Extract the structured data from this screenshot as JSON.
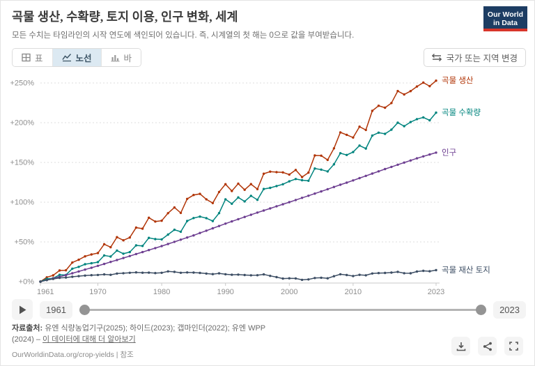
{
  "header": {
    "title": "곡물 생산, 수확량, 토지 이용, 인구 변화, 세계",
    "subtitle": "모든 수치는 타임라인의 시작 연도에 색인되어 있습니다. 즉, 시계열의 첫 해는 0으로 값을 부여받습니다.",
    "logo_line1": "Our World",
    "logo_line2": "in Data"
  },
  "controls": {
    "tab_table": "표",
    "tab_line": "노선",
    "tab_bar": "바",
    "entity_button": "국가 또는 지역 변경"
  },
  "chart_data": {
    "type": "line",
    "title": "곡물 생산, 수확량, 토지 이용, 인구 변화, 세계",
    "xlabel": "",
    "ylabel": "",
    "ylim": [
      0,
      265
    ],
    "grid": "horizontal-dashed",
    "legend_position": "right-end-labels",
    "y_tick_labels": [
      "+0%",
      "+50%",
      "+100%",
      "+150%",
      "+200%",
      "+250%"
    ],
    "y_tick_values": [
      0,
      50,
      100,
      150,
      200,
      250
    ],
    "x_ticks": [
      1961,
      1970,
      1980,
      1990,
      2000,
      2010,
      2023
    ],
    "years": [
      1961,
      1962,
      1963,
      1964,
      1965,
      1966,
      1967,
      1968,
      1969,
      1970,
      1971,
      1972,
      1973,
      1974,
      1975,
      1976,
      1977,
      1978,
      1979,
      1980,
      1981,
      1982,
      1983,
      1984,
      1985,
      1986,
      1987,
      1988,
      1989,
      1990,
      1991,
      1992,
      1993,
      1994,
      1995,
      1996,
      1997,
      1998,
      1999,
      2000,
      2001,
      2002,
      2003,
      2004,
      2005,
      2006,
      2007,
      2008,
      2009,
      2010,
      2011,
      2012,
      2013,
      2014,
      2015,
      2016,
      2017,
      2018,
      2019,
      2020,
      2021,
      2022,
      2023
    ],
    "series": [
      {
        "name": "곡물 생산",
        "color": "#b13507",
        "values": [
          0,
          5.4,
          7.9,
          14,
          14.3,
          24,
          27.5,
          31.8,
          34.2,
          36,
          47.1,
          43.3,
          56,
          52,
          55.5,
          68,
          66.7,
          80.4,
          75.6,
          76.7,
          86.1,
          93.3,
          86.5,
          104.1,
          109,
          110.4,
          103.6,
          98.9,
          112.8,
          122.6,
          114,
          123.3,
          115.6,
          122.7,
          116.4,
          135.8,
          138.4,
          137.8,
          137.5,
          134.7,
          140.5,
          131.6,
          137.2,
          158.8,
          158.5,
          153.2,
          167.7,
          187.8,
          184.7,
          181.3,
          195,
          190.9,
          214.9,
          221.3,
          218.9,
          224.7,
          239.8,
          235.5,
          239.7,
          245.5,
          250.4,
          246,
          252.9
        ]
      },
      {
        "name": "곡물 수확량",
        "color": "#00847e",
        "values": [
          0,
          3.5,
          4.3,
          8.6,
          8.4,
          16.3,
          18.6,
          21.9,
          23.2,
          24.6,
          33,
          31.6,
          39.1,
          35.2,
          37.2,
          45.6,
          44.9,
          55.1,
          53.5,
          53.2,
          59.2,
          65.3,
          62.8,
          76.3,
          80,
          81.8,
          79.9,
          76.2,
          86.2,
          103.6,
          98,
          106,
          101,
          108,
          103,
          116.6,
          118,
          120.3,
          122.5,
          126.2,
          129.1,
          127.6,
          126.9,
          142.4,
          141,
          138.7,
          147.6,
          161.6,
          159.4,
          163.1,
          171.2,
          167.5,
          183.8,
          187.5,
          186,
          191.2,
          200,
          195.6,
          200.8,
          204.5,
          206.7,
          203,
          212.6
        ]
      },
      {
        "name": "인구",
        "color": "#6d3e91",
        "values": [
          0,
          2,
          4.1,
          6.1,
          8.2,
          10.5,
          12.8,
          15.2,
          17.5,
          19.9,
          22.3,
          24.8,
          27.2,
          29.7,
          32.2,
          34.7,
          37.2,
          39.7,
          42.2,
          44.7,
          47.4,
          50.1,
          52.8,
          55.5,
          58.2,
          61.2,
          64.1,
          67.1,
          70,
          73,
          75.8,
          78.6,
          81.4,
          84.1,
          86.9,
          89.5,
          92.1,
          94.8,
          97.4,
          100,
          102.7,
          105.4,
          108.1,
          110.8,
          113.5,
          116.3,
          119.1,
          121.9,
          124.6,
          127.4,
          130.3,
          133.1,
          136,
          138.8,
          141.7,
          144.4,
          147.1,
          149.8,
          152.5,
          155.2,
          157.6,
          160,
          162.4
        ]
      },
      {
        "name": "곡물 재산 토지",
        "color": "#3d4e64",
        "values": [
          0,
          1.9,
          3.4,
          4.7,
          5.2,
          6.1,
          6.9,
          7.6,
          8.2,
          8.4,
          9.1,
          8.6,
          10.2,
          10.6,
          11.1,
          11.7,
          11.2,
          11.3,
          10.8,
          11.1,
          12.9,
          12.3,
          11.1,
          11.6,
          11.4,
          11,
          10.2,
          9.5,
          10.4,
          9.3,
          8.7,
          8.9,
          8.3,
          8,
          8.1,
          9.1,
          7.3,
          5.7,
          3.9,
          4.2,
          4,
          2.3,
          2.8,
          4.6,
          4.9,
          4.2,
          6.8,
          9.3,
          8.3,
          7,
          8.6,
          8,
          10.3,
          10.8,
          11,
          11.4,
          12.3,
          10.6,
          10.5,
          12.7,
          13.6,
          13.1,
          14.5
        ]
      }
    ]
  },
  "timeline": {
    "start_year": "1961",
    "end_year": "2023"
  },
  "footer": {
    "source_label": "자료출처:",
    "source_text": " 유엔 식량농업기구(2025); 하이드(2023); 갭마인더(2022); 유엔 WPP (2024) – ",
    "learn_more_link": "이 데이터에 대해 더 알아보기",
    "citation_url": "OurWorldinData.org/crop-yields",
    "citation_separator": "|",
    "citation_note": "참조"
  },
  "colors": {
    "logo_background": "#1d3d63",
    "logo_stripe": "#d8352a",
    "active_tab_background": "#dce9f2"
  }
}
